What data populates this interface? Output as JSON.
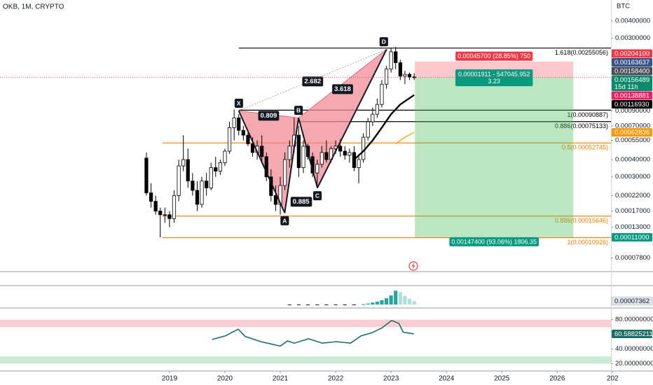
{
  "header": {
    "symbol": "OKB, 1M, CRYPTO",
    "currency": "BTC"
  },
  "chart_data": [
    {
      "type": "candlestick",
      "log_scale": true,
      "grid": false,
      "up_color": "#ffffff",
      "down_color": "#000000",
      "border_color": "#000000",
      "xlim": [
        2015.94,
        2026.97
      ],
      "xticks": [
        2019,
        2020,
        2021,
        2022,
        2023,
        2024,
        2025,
        2026,
        {
          "value": 2027,
          "label": "202"
        }
      ],
      "ylim": [
        6.22e-05,
        0.00567
      ],
      "yticks": [
        {
          "value": 0.004,
          "label": "0.00400000"
        },
        {
          "value": 0.003,
          "label": "0.00300000"
        },
        {
          "value": 0.0009,
          "label": "0.00090000"
        },
        {
          "value": 0.0007,
          "label": "0.00070000"
        },
        {
          "value": 0.00055,
          "label": "0.00055000"
        },
        {
          "value": 0.0004,
          "label": "0.00040000"
        },
        {
          "value": 0.0003,
          "label": "0.00030000"
        },
        {
          "value": 0.00022,
          "label": "0.00022000"
        },
        {
          "value": 0.00017,
          "label": "0.00017000"
        },
        {
          "value": 0.00013,
          "label": "0.00013000"
        },
        {
          "value": 7.8e-05,
          "label": "0.00007800"
        }
      ],
      "x": [
        2018.583,
        2018.667,
        2018.75,
        2018.833,
        2018.917,
        2019,
        2019.083,
        2019.167,
        2019.25,
        2019.333,
        2019.417,
        2019.5,
        2019.583,
        2019.667,
        2019.75,
        2019.833,
        2019.917,
        2020,
        2020.083,
        2020.167,
        2020.25,
        2020.333,
        2020.417,
        2020.5,
        2020.583,
        2020.667,
        2020.75,
        2020.833,
        2020.917,
        2021,
        2021.083,
        2021.167,
        2021.25,
        2021.333,
        2021.417,
        2021.5,
        2021.583,
        2021.667,
        2021.75,
        2021.833,
        2021.917,
        2022,
        2022.083,
        2022.167,
        2022.25,
        2022.333,
        2022.417,
        2022.5,
        2022.583,
        2022.667,
        2022.75,
        2022.833,
        2022.917,
        2023,
        2023.083,
        2023.167,
        2023.25,
        2023.333,
        2023.417
      ],
      "open": [
        0.00041,
        0.00023,
        0.0002,
        0.00017,
        0.00016,
        0.00016,
        0.00015,
        0.00022,
        0.00036,
        0.0004,
        0.00028,
        0.00024,
        0.00019,
        0.00028,
        0.00025,
        0.00035,
        0.00033,
        0.00038,
        0.00046,
        0.00068,
        0.0008,
        0.00065,
        0.0006,
        0.00052,
        0.00045,
        0.0005,
        0.00042,
        0.0003,
        0.00022,
        0.00019,
        0.00026,
        0.0004,
        0.0005,
        0.0006,
        0.00035,
        0.0005,
        0.00042,
        0.00032,
        0.00037,
        0.00045,
        0.0004,
        0.00048,
        0.0005,
        0.00046,
        0.00043,
        0.00045,
        0.00035,
        0.0004,
        0.00058,
        0.00075,
        0.00085,
        0.001,
        0.0014,
        0.0018,
        0.0024,
        0.002,
        0.0016,
        0.00165,
        0.00158
      ],
      "high": [
        0.00045,
        0.00027,
        0.00022,
        0.00018,
        0.00018,
        0.00017,
        0.00024,
        0.0004,
        0.0006,
        0.00048,
        0.00032,
        0.00028,
        0.0003,
        0.00032,
        0.00038,
        0.00042,
        0.0004,
        0.00048,
        0.00075,
        0.00092,
        0.00085,
        0.0007,
        0.00065,
        0.00058,
        0.00055,
        0.0006,
        0.00045,
        0.00034,
        0.00026,
        0.0003,
        0.00045,
        0.00055,
        0.0008,
        0.0007,
        0.00055,
        0.00052,
        0.00045,
        0.0004,
        0.0005,
        0.00055,
        0.0005,
        0.00055,
        0.00056,
        0.0005,
        0.00048,
        0.0005,
        0.00042,
        0.00062,
        0.0008,
        0.00095,
        0.0011,
        0.0015,
        0.0019,
        0.00255,
        0.0026,
        0.0021,
        0.00175,
        0.0017,
        0.00168
      ],
      "low": [
        0.00022,
        0.00018,
        0.00016,
        0.00011,
        0.00014,
        0.00013,
        0.00014,
        0.0002,
        0.00033,
        0.00025,
        0.00022,
        0.00017,
        0.00018,
        0.00022,
        0.00024,
        0.0003,
        0.00031,
        0.00036,
        0.00044,
        0.00055,
        0.0006,
        0.00055,
        0.0005,
        0.00042,
        0.0004,
        0.00038,
        0.00028,
        0.0002,
        0.00017,
        0.00016,
        0.00024,
        0.00035,
        0.00045,
        0.0003,
        0.00032,
        0.0004,
        0.0003,
        0.00025,
        0.00035,
        0.00038,
        0.00038,
        0.00044,
        0.00042,
        0.0004,
        0.00038,
        0.00033,
        0.00027,
        0.00038,
        0.00055,
        0.0007,
        0.0008,
        0.00095,
        0.0013,
        0.0017,
        0.0018,
        0.0015,
        0.0014,
        0.0015,
        0.0015
      ],
      "close": [
        0.00023,
        0.0002,
        0.00017,
        0.00016,
        0.00016,
        0.00015,
        0.00022,
        0.00036,
        0.0004,
        0.00028,
        0.00024,
        0.00019,
        0.00028,
        0.00025,
        0.00035,
        0.00033,
        0.00038,
        0.00046,
        0.00068,
        0.0008,
        0.00065,
        0.0006,
        0.00052,
        0.00045,
        0.0005,
        0.00042,
        0.0003,
        0.00022,
        0.00019,
        0.00026,
        0.0004,
        0.0005,
        0.0006,
        0.00035,
        0.0005,
        0.00042,
        0.00032,
        0.00037,
        0.00045,
        0.0004,
        0.00048,
        0.0005,
        0.00046,
        0.00043,
        0.00045,
        0.00035,
        0.0004,
        0.00058,
        0.00075,
        0.00085,
        0.001,
        0.0014,
        0.0018,
        0.0024,
        0.002,
        0.0016,
        0.00165,
        0.00158,
        0.00156
      ],
      "ma_lines": [
        {
          "color": "#000000",
          "x": [
            2022.333,
            2022.5,
            2022.667,
            2022.833,
            2023,
            2023.167,
            2023.417
          ],
          "values": [
            0.0004,
            0.00046,
            0.00055,
            0.00068,
            0.00085,
            0.001,
            0.00117
          ]
        },
        {
          "color": "#ff9800",
          "x": [
            2023.083,
            2023.25,
            2023.417
          ],
          "values": [
            0.00052,
            0.00058,
            0.00062836
          ]
        }
      ],
      "pattern": {
        "fill": "#f28b96",
        "points": [
          {
            "label": "X",
            "x": 2020.25,
            "value": 0.0009
          },
          {
            "label": "A",
            "x": 2021.08,
            "value": 0.000165
          },
          {
            "label": "B",
            "x": 2021.33,
            "value": 0.0008
          },
          {
            "label": "C",
            "x": 2021.67,
            "value": 0.00025
          },
          {
            "label": "D",
            "x": 2022.92,
            "value": 0.0025
          }
        ],
        "ratios": [
          "0.809",
          "0.885",
          "2.682",
          "3.618"
        ]
      },
      "fib_levels": [
        {
          "value": 0.00255056,
          "label": "1.618(0.00255056)",
          "color": "#000000",
          "x_start": 2020.25
        },
        {
          "value": 0.00090887,
          "label": "1(0.00090887)",
          "color": "#000000",
          "x_start": 2020.25
        },
        {
          "value": 0.00075133,
          "label": "0.886(0.00075133)",
          "color": "#000000",
          "x_start": 2021.33
        },
        {
          "value": 0.00052745,
          "label": "0.5(0.00052745)",
          "color": "#f57c00",
          "x_start": 2018.87
        },
        {
          "value": 0.00015646,
          "label": "0.886(0.00015646)",
          "color": "#f57c00",
          "x_start": 2018.87
        },
        {
          "value": 0.00010926,
          "label": "1(0.00010926)",
          "color": "#f57c00",
          "x_start": 2018.87
        }
      ],
      "position": {
        "entry": 0.00156489,
        "stop": 0.002041,
        "target": 0.00011,
        "x_start": 2023.43,
        "x_end": 2026.29,
        "stop_label": "0.00045700 (28.85%) 750",
        "entry_label": [
          "0.00001911 - 547045.952",
          "3.23"
        ],
        "target_label": "0.00147400 (93.06%) 1806.35"
      },
      "price_labels": [
        {
          "value": 0.002041,
          "label": "0.00204100",
          "color": "#f23645"
        },
        {
          "value": 0.00163637,
          "label": "0.00163637",
          "color": "#34558b"
        },
        {
          "value": 0.001584,
          "label": "0.00158400",
          "color": "#4a4d57"
        },
        {
          "value": 0.00156489,
          "label": "0.00156489",
          "color": "#0b8a6b",
          "sub": "15d 11h"
        },
        {
          "value": 0.00138881,
          "label": "0.00138881",
          "color": "#e91e63"
        },
        {
          "value": 0.0011693,
          "label": "0.00116930",
          "color": "#000000"
        },
        {
          "value": 0.00062836,
          "label": "0.00062836",
          "color": "#ff9800"
        },
        {
          "value": 0.00011,
          "label": "0.00011000",
          "color": "#089981"
        }
      ]
    },
    {
      "type": "bar",
      "ylim": [
        -7.36e-05,
        0.000368
      ],
      "colors": {
        "negative": "#1e1e1e",
        "rising": "#26a69a",
        "falling": "#b2dfdb"
      },
      "x": [
        2021.167,
        2021.333,
        2021.5,
        2021.667,
        2021.833,
        2022,
        2022.167,
        2022.333,
        2022.5,
        2022.583,
        2022.667,
        2022.75,
        2022.833,
        2022.917,
        2023,
        2023.083,
        2023.167,
        2023.25,
        2023.333,
        2023.417
      ],
      "values": [
        -1e-05,
        -1.2e-05,
        -8e-06,
        -1.2e-05,
        -1e-05,
        -8e-06,
        -6e-06,
        -5e-06,
        5e-06,
        2e-05,
        4e-05,
        6e-05,
        9e-05,
        0.00013,
        0.00019,
        0.00029,
        0.00026,
        0.00018,
        0.00012,
        7.362e-05
      ],
      "current_label": {
        "value": 7.362e-05,
        "label": "0.00007362"
      }
    },
    {
      "type": "line",
      "color": "#1b6e63",
      "ylim": [
        10,
        95
      ],
      "yticks": [
        {
          "value": 80,
          "label": "80.00000000"
        },
        {
          "value": 40,
          "label": "40.00000000"
        },
        {
          "value": 20,
          "label": "20.00000000"
        }
      ],
      "bands": [
        {
          "from": 70,
          "to": 80,
          "color": "#f9cdd2"
        },
        {
          "from": 20,
          "to": 30,
          "color": "#c9ecd2"
        }
      ],
      "x": [
        2019.77,
        2020.01,
        2020.24,
        2020.37,
        2020.65,
        2021,
        2021.13,
        2021.25,
        2021.51,
        2021.76,
        2022.01,
        2022.27,
        2022.46,
        2022.65,
        2022.84,
        2023.01,
        2023.14,
        2023.22,
        2023.41
      ],
      "values": [
        53,
        58,
        67,
        57,
        50,
        44,
        51,
        48,
        54,
        48,
        50,
        48,
        58,
        62,
        69,
        79,
        75,
        63,
        60.58825211
      ],
      "current_label": {
        "value": 60.58825211,
        "label": "60.58825211"
      }
    }
  ]
}
